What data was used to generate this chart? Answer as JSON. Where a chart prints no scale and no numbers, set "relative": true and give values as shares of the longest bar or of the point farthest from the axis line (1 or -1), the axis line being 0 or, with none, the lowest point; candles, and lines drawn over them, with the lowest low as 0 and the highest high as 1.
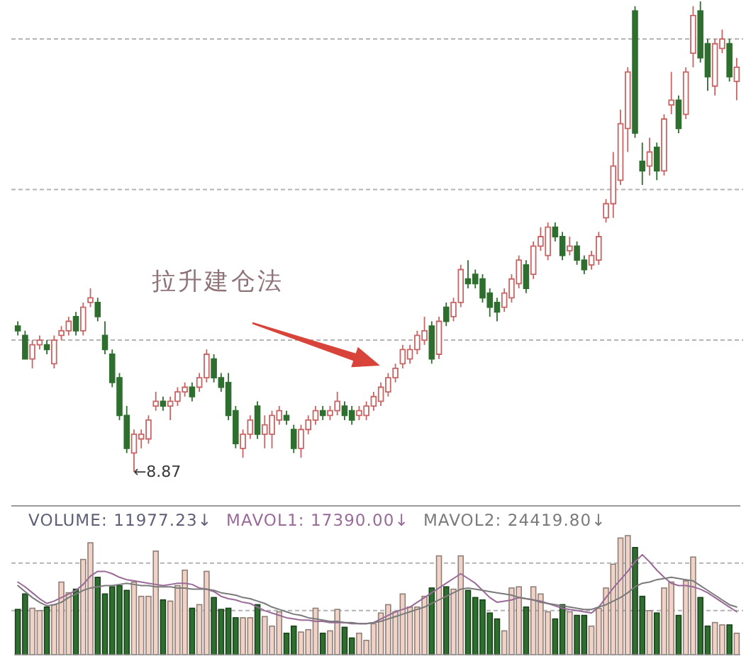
{
  "chart_data": [
    {
      "type": "candlestick",
      "relative": true,
      "categories": [
        null,
        null,
        null,
        null,
        null,
        null,
        null,
        null,
        null,
        null,
        null,
        null,
        null,
        null,
        null,
        null,
        null,
        null,
        null,
        null,
        null,
        null,
        null,
        null,
        null,
        null,
        null,
        null,
        null,
        null,
        null,
        null,
        null,
        null,
        null,
        null,
        null,
        null,
        null,
        null,
        null,
        null,
        null,
        null,
        null,
        null,
        null,
        null,
        null,
        null,
        null,
        null,
        null,
        null,
        null,
        null,
        null,
        null,
        null,
        null,
        null,
        null,
        null,
        null,
        null,
        null,
        null,
        null,
        null,
        null,
        null,
        null,
        null,
        null,
        null,
        null,
        null,
        null,
        null,
        null,
        null,
        null,
        null,
        null,
        null,
        null,
        null,
        null,
        null,
        null,
        null,
        null,
        null,
        null,
        null,
        null,
        null,
        null,
        null,
        null
      ],
      "ohlc": [
        [
          0.31,
          0.32,
          0.29,
          0.3
        ],
        [
          0.29,
          0.3,
          0.24,
          0.24
        ],
        [
          0.24,
          0.28,
          0.22,
          0.27
        ],
        [
          0.27,
          0.29,
          0.26,
          0.28
        ],
        [
          0.27,
          0.28,
          0.25,
          0.26
        ],
        [
          0.23,
          0.29,
          0.22,
          0.28
        ],
        [
          0.29,
          0.31,
          0.28,
          0.3
        ],
        [
          0.3,
          0.33,
          0.29,
          0.32
        ],
        [
          0.33,
          0.34,
          0.29,
          0.3
        ],
        [
          0.3,
          0.36,
          0.29,
          0.35
        ],
        [
          0.36,
          0.39,
          0.35,
          0.37
        ],
        [
          0.36,
          0.37,
          0.32,
          0.33
        ],
        [
          0.29,
          0.32,
          0.25,
          0.26
        ],
        [
          0.25,
          0.26,
          0.18,
          0.19
        ],
        [
          0.2,
          0.21,
          0.11,
          0.12
        ],
        [
          0.12,
          0.14,
          0.04,
          0.05
        ],
        [
          0.04,
          0.09,
          0,
          0.08
        ],
        [
          0.07,
          0.09,
          0.05,
          0.08
        ],
        [
          0.07,
          0.12,
          0.06,
          0.11
        ],
        [
          0.14,
          0.17,
          0.13,
          0.15
        ],
        [
          0.15,
          0.16,
          0.13,
          0.14
        ],
        [
          0.14,
          0.16,
          0.11,
          0.15
        ],
        [
          0.15,
          0.18,
          0.14,
          0.17
        ],
        [
          0.17,
          0.19,
          0.16,
          0.18
        ],
        [
          0.18,
          0.19,
          0.15,
          0.16
        ],
        [
          0.18,
          0.21,
          0.17,
          0.2
        ],
        [
          0.2,
          0.26,
          0.19,
          0.25
        ],
        [
          0.24,
          0.25,
          0.19,
          0.2
        ],
        [
          0.2,
          0.21,
          0.17,
          0.18
        ],
        [
          0.19,
          0.21,
          0.11,
          0.12
        ],
        [
          0.13,
          0.14,
          0.05,
          0.06
        ],
        [
          0.05,
          0.09,
          0.03,
          0.08
        ],
        [
          0.08,
          0.12,
          0.07,
          0.11
        ],
        [
          0.14,
          0.15,
          0.07,
          0.08
        ],
        [
          0.08,
          0.12,
          0.05,
          0.1
        ],
        [
          0.08,
          0.13,
          0.05,
          0.12
        ],
        [
          0.11,
          0.14,
          0.1,
          0.13
        ],
        [
          0.12,
          0.13,
          0.1,
          0.11
        ],
        [
          0.09,
          0.1,
          0.04,
          0.05
        ],
        [
          0.05,
          0.1,
          0.03,
          0.09
        ],
        [
          0.09,
          0.12,
          0.08,
          0.11
        ],
        [
          0.11,
          0.14,
          0.1,
          0.13
        ],
        [
          0.13,
          0.14,
          0.11,
          0.12
        ],
        [
          0.12,
          0.14,
          0.11,
          0.13
        ],
        [
          0.13,
          0.17,
          0.12,
          0.15
        ],
        [
          0.14,
          0.15,
          0.11,
          0.12
        ],
        [
          0.13,
          0.14,
          0.1,
          0.11
        ],
        [
          0.12,
          0.14,
          0.11,
          0.13
        ],
        [
          0.12,
          0.15,
          0.11,
          0.14
        ],
        [
          0.14,
          0.17,
          0.13,
          0.16
        ],
        [
          0.15,
          0.19,
          0.14,
          0.18
        ],
        [
          0.17,
          0.21,
          0.16,
          0.2
        ],
        [
          0.2,
          0.23,
          0.19,
          0.22
        ],
        [
          0.23,
          0.27,
          0.22,
          0.26
        ],
        [
          0.24,
          0.27,
          0.23,
          0.26
        ],
        [
          0.26,
          0.3,
          0.25,
          0.29
        ],
        [
          0.28,
          0.33,
          0.27,
          0.3
        ],
        [
          0.31,
          0.32,
          0.23,
          0.24
        ],
        [
          0.25,
          0.33,
          0.24,
          0.32
        ],
        [
          0.35,
          0.36,
          0.31,
          0.32
        ],
        [
          0.33,
          0.37,
          0.32,
          0.36
        ],
        [
          0.36,
          0.44,
          0.35,
          0.43
        ],
        [
          0.41,
          0.45,
          0.39,
          0.4
        ],
        [
          0.42,
          0.43,
          0.39,
          0.4
        ],
        [
          0.41,
          0.42,
          0.36,
          0.37
        ],
        [
          0.38,
          0.39,
          0.33,
          0.35
        ],
        [
          0.36,
          0.37,
          0.32,
          0.34
        ],
        [
          0.35,
          0.39,
          0.34,
          0.38
        ],
        [
          0.37,
          0.42,
          0.36,
          0.41
        ],
        [
          0.4,
          0.46,
          0.39,
          0.45
        ],
        [
          0.44,
          0.45,
          0.38,
          0.39
        ],
        [
          0.42,
          0.49,
          0.41,
          0.48
        ],
        [
          0.48,
          0.52,
          0.47,
          0.5
        ],
        [
          0.46,
          0.53,
          0.45,
          0.52
        ],
        [
          0.52,
          0.53,
          0.49,
          0.5
        ],
        [
          0.5,
          0.51,
          0.45,
          0.46
        ],
        [
          0.47,
          0.5,
          0.46,
          0.48
        ],
        [
          0.48,
          0.49,
          0.44,
          0.45
        ],
        [
          0.45,
          0.46,
          0.42,
          0.43
        ],
        [
          0.44,
          0.47,
          0.43,
          0.46
        ],
        [
          0.45,
          0.51,
          0.44,
          0.5
        ],
        [
          0.54,
          0.58,
          0.53,
          0.57
        ],
        [
          0.57,
          0.68,
          0.54,
          0.65
        ],
        [
          0.62,
          0.77,
          0.61,
          0.74
        ],
        [
          0.73,
          0.86,
          0.68,
          0.85
        ],
        [
          0.98,
          0.99,
          0.71,
          0.72
        ],
        [
          0.66,
          0.7,
          0.61,
          0.64
        ],
        [
          0.65,
          0.71,
          0.63,
          0.68
        ],
        [
          0.69,
          0.7,
          0.62,
          0.64
        ],
        [
          0.64,
          0.76,
          0.63,
          0.75
        ],
        [
          0.78,
          0.85,
          0.76,
          0.79
        ],
        [
          0.79,
          0.8,
          0.72,
          0.73
        ],
        [
          0.76,
          0.86,
          0.75,
          0.85
        ],
        [
          0.89,
          0.99,
          0.86,
          0.97
        ],
        [
          0.98,
          1,
          0.87,
          0.88
        ],
        [
          0.91,
          0.92,
          0.81,
          0.84
        ],
        [
          0.82,
          0.92,
          0.8,
          0.91
        ],
        [
          0.9,
          0.94,
          0.89,
          0.92
        ],
        [
          0.91,
          0.92,
          0.83,
          0.84
        ],
        [
          0.83,
          0.88,
          0.79,
          0.86
        ]
      ],
      "colors": [
        "#2e6e2e",
        "#2e6e2e",
        "#c86464",
        "#c86464",
        "#2e6e2e",
        "#c86464",
        "#c86464",
        "#c86464",
        "#2e6e2e",
        "#c86464",
        "#c86464",
        "#2e6e2e",
        "#2e6e2e",
        "#2e6e2e",
        "#2e6e2e",
        "#2e6e2e",
        "#c86464",
        "#c86464",
        "#c86464",
        "#c86464",
        "#2e6e2e",
        "#c86464",
        "#c86464",
        "#c86464",
        "#2e6e2e",
        "#c86464",
        "#c86464",
        "#2e6e2e",
        "#2e6e2e",
        "#2e6e2e",
        "#2e6e2e",
        "#c86464",
        "#c86464",
        "#2e6e2e",
        "#c86464",
        "#c86464",
        "#c86464",
        "#2e6e2e",
        "#2e6e2e",
        "#c86464",
        "#c86464",
        "#c86464",
        "#2e6e2e",
        "#c86464",
        "#c86464",
        "#2e6e2e",
        "#2e6e2e",
        "#c86464",
        "#c86464",
        "#c86464",
        "#c86464",
        "#c86464",
        "#c86464",
        "#c86464",
        "#c86464",
        "#c86464",
        "#c86464",
        "#2e6e2e",
        "#c86464",
        "#2e6e2e",
        "#c86464",
        "#c86464",
        "#2e6e2e",
        "#2e6e2e",
        "#2e6e2e",
        "#2e6e2e",
        "#2e6e2e",
        "#c86464",
        "#c86464",
        "#c86464",
        "#2e6e2e",
        "#c86464",
        "#c86464",
        "#c86464",
        "#2e6e2e",
        "#2e6e2e",
        "#c86464",
        "#2e6e2e",
        "#2e6e2e",
        "#c86464",
        "#c86464",
        "#c86464",
        "#c86464",
        "#c86464",
        "#c86464",
        "#2e6e2e",
        "#2e6e2e",
        "#c86464",
        "#2e6e2e",
        "#c86464",
        "#c86464",
        "#2e6e2e",
        "#c86464",
        "#c86464",
        "#2e6e2e",
        "#2e6e2e",
        "#c86464",
        "#c86464",
        "#2e6e2e",
        "#c86464"
      ],
      "ref_lines": [
        {
          "axis": "y",
          "value": 0.92,
          "line_style": "dashed",
          "color": "#b4b4b4"
        },
        {
          "axis": "y",
          "value": 0.6,
          "line_style": "dashed",
          "color": "#b4b4b4"
        },
        {
          "axis": "y",
          "value": 0.28,
          "line_style": "dashed",
          "color": "#b4b4b4"
        }
      ],
      "annotations": [
        "拉升建仓法",
        "←8.87"
      ]
    },
    {
      "type": "bar",
      "relative": true,
      "title": "VOLUME: 11977.23↓",
      "categories": [
        null,
        null,
        null,
        null,
        null,
        null,
        null,
        null,
        null,
        null,
        null,
        null,
        null,
        null,
        null,
        null,
        null,
        null,
        null,
        null,
        null,
        null,
        null,
        null,
        null,
        null,
        null,
        null,
        null,
        null,
        null,
        null,
        null,
        null,
        null,
        null,
        null,
        null,
        null,
        null,
        null,
        null,
        null,
        null,
        null,
        null,
        null,
        null,
        null,
        null,
        null,
        null,
        null,
        null,
        null,
        null,
        null,
        null,
        null,
        null,
        null,
        null,
        null,
        null,
        null,
        null,
        null,
        null,
        null,
        null,
        null,
        null,
        null,
        null,
        null,
        null,
        null,
        null,
        null,
        null,
        null,
        null,
        null,
        null,
        null,
        null,
        null,
        null,
        null,
        null,
        null,
        null,
        null,
        null,
        null,
        null,
        null,
        null,
        null,
        null
      ],
      "series": [
        {
          "values": [
            0.38,
            0.51,
            0.39,
            0.37,
            0.4,
            0.42,
            0.61,
            0.52,
            0.55,
            0.8,
            0.94,
            0.65,
            0.51,
            0.57,
            0.58,
            0.54,
            0.61,
            0.49,
            0.49,
            0.87,
            0.46,
            0.45,
            0.58,
            0.71,
            0.39,
            0.42,
            0.7,
            0.48,
            0.38,
            0.39,
            0.31,
            0.31,
            0.31,
            0.42,
            0.32,
            0.24,
            0.36,
            0.18,
            0.24,
            0.19,
            0.21,
            0.39,
            0.18,
            0.2,
            0.38,
            0.23,
            0.14,
            0.18,
            0.12,
            0.26,
            0.35,
            0.42,
            0.36,
            0.51,
            0.4,
            0.4,
            0.49,
            0.56,
            0.83,
            0.57,
            0.55,
            0.83,
            0.54,
            0.48,
            0.46,
            0.35,
            0.3,
            0.2,
            0.56,
            0.57,
            0.4,
            0.57,
            0.51,
            0.36,
            0.3,
            0.42,
            0.36,
            0.33,
            0.33,
            0.24,
            0.39,
            0.56,
            0.76,
            0.98,
            1,
            0.9,
            0.49,
            0.37,
            0.35,
            0.56,
            0.61,
            0.33,
            0.62,
            0.82,
            0.48,
            0.24,
            0.27,
            0.25,
            0.25,
            0.18
          ],
          "colors": [
            "#2e6e2e",
            "#2e6e2e",
            "#f0d2c6",
            "#f0d2c6",
            "#2e6e2e",
            "#f0d2c6",
            "#f0d2c6",
            "#f0d2c6",
            "#2e6e2e",
            "#f0d2c6",
            "#f0d2c6",
            "#2e6e2e",
            "#2e6e2e",
            "#2e6e2e",
            "#2e6e2e",
            "#2e6e2e",
            "#f0d2c6",
            "#f0d2c6",
            "#f0d2c6",
            "#f0d2c6",
            "#2e6e2e",
            "#f0d2c6",
            "#f0d2c6",
            "#f0d2c6",
            "#2e6e2e",
            "#f0d2c6",
            "#f0d2c6",
            "#2e6e2e",
            "#2e6e2e",
            "#2e6e2e",
            "#2e6e2e",
            "#f0d2c6",
            "#f0d2c6",
            "#2e6e2e",
            "#f0d2c6",
            "#f0d2c6",
            "#f0d2c6",
            "#2e6e2e",
            "#2e6e2e",
            "#f0d2c6",
            "#f0d2c6",
            "#f0d2c6",
            "#2e6e2e",
            "#f0d2c6",
            "#f0d2c6",
            "#2e6e2e",
            "#2e6e2e",
            "#f0d2c6",
            "#f0d2c6",
            "#f0d2c6",
            "#f0d2c6",
            "#f0d2c6",
            "#f0d2c6",
            "#f0d2c6",
            "#f0d2c6",
            "#f0d2c6",
            "#f0d2c6",
            "#2e6e2e",
            "#f0d2c6",
            "#2e6e2e",
            "#f0d2c6",
            "#f0d2c6",
            "#2e6e2e",
            "#2e6e2e",
            "#2e6e2e",
            "#2e6e2e",
            "#2e6e2e",
            "#f0d2c6",
            "#f0d2c6",
            "#f0d2c6",
            "#2e6e2e",
            "#f0d2c6",
            "#f0d2c6",
            "#f0d2c6",
            "#2e6e2e",
            "#2e6e2e",
            "#f0d2c6",
            "#2e6e2e",
            "#2e6e2e",
            "#f0d2c6",
            "#f0d2c6",
            "#f0d2c6",
            "#f0d2c6",
            "#f0d2c6",
            "#f0d2c6",
            "#2e6e2e",
            "#2e6e2e",
            "#f0d2c6",
            "#2e6e2e",
            "#f0d2c6",
            "#f0d2c6",
            "#2e6e2e",
            "#f0d2c6",
            "#f0d2c6",
            "#2e6e2e",
            "#2e6e2e",
            "#f0d2c6",
            "#f0d2c6",
            "#2e6e2e",
            "#f0d2c6"
          ]
        },
        {
          "name": "MAVOL1: 17390.00↓",
          "type": "line",
          "color": "#9a6a98",
          "values": [
            0.61,
            0.57,
            0.52,
            0.47,
            0.43,
            0.45,
            0.48,
            0.51,
            0.54,
            0.59,
            0.66,
            0.7,
            0.7,
            0.68,
            0.65,
            0.63,
            0.62,
            0.61,
            0.6,
            0.59,
            0.58,
            0.59,
            0.6,
            0.6,
            0.59,
            0.56,
            0.55,
            0.53,
            0.49,
            0.47,
            0.46,
            0.44,
            0.43,
            0.4,
            0.37,
            0.35,
            0.33,
            0.31,
            0.3,
            0.29,
            0.29,
            0.28,
            0.28,
            0.27,
            0.27,
            0.27,
            0.26,
            0.26,
            0.26,
            0.27,
            0.3,
            0.33,
            0.36,
            0.38,
            0.4,
            0.44,
            0.48,
            0.52,
            0.56,
            0.6,
            0.64,
            0.68,
            0.64,
            0.6,
            0.54,
            0.48,
            0.44,
            0.45,
            0.46,
            0.48,
            0.47,
            0.46,
            0.45,
            0.43,
            0.41,
            0.39,
            0.38,
            0.37,
            0.36,
            0.35,
            0.4,
            0.48,
            0.56,
            0.63,
            0.7,
            0.78,
            0.84,
            0.78,
            0.71,
            0.65,
            0.6,
            0.58,
            0.58,
            0.57,
            0.55,
            0.52,
            0.48,
            0.44,
            0.4,
            0.36
          ]
        },
        {
          "name": "MAVOL2: 24419.80↓",
          "type": "line",
          "color": "#7a7a7a",
          "values": [
            0.58,
            0.53,
            0.48,
            0.44,
            0.41,
            0.42,
            0.44,
            0.48,
            0.51,
            0.54,
            0.56,
            0.57,
            0.58,
            0.58,
            0.59,
            0.6,
            0.59,
            0.58,
            0.58,
            0.57,
            0.57,
            0.57,
            0.56,
            0.56,
            0.55,
            0.55,
            0.55,
            0.54,
            0.52,
            0.51,
            0.5,
            0.48,
            0.47,
            0.45,
            0.43,
            0.4,
            0.38,
            0.36,
            0.34,
            0.33,
            0.31,
            0.3,
            0.29,
            0.28,
            0.28,
            0.27,
            0.27,
            0.26,
            0.26,
            0.27,
            0.28,
            0.3,
            0.32,
            0.34,
            0.36,
            0.38,
            0.4,
            0.43,
            0.46,
            0.49,
            0.52,
            0.55,
            0.56,
            0.55,
            0.54,
            0.53,
            0.52,
            0.51,
            0.5,
            0.48,
            0.47,
            0.46,
            0.44,
            0.43,
            0.42,
            0.41,
            0.4,
            0.39,
            0.38,
            0.38,
            0.4,
            0.42,
            0.45,
            0.48,
            0.52,
            0.57,
            0.6,
            0.61,
            0.63,
            0.64,
            0.65,
            0.64,
            0.63,
            0.62,
            0.58,
            0.54,
            0.5,
            0.46,
            0.42,
            0.4
          ]
        }
      ],
      "ref_lines": [
        {
          "axis": "y",
          "value": 0.77,
          "line_style": "dashed",
          "color": "#b4b4b4"
        },
        {
          "axis": "y",
          "value": 0.37,
          "line_style": "dashed",
          "color": "#b4b4b4"
        }
      ]
    }
  ]
}
